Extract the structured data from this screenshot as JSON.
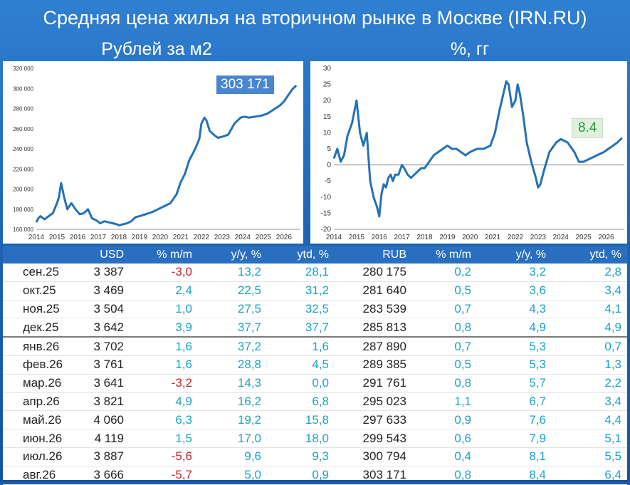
{
  "title": "Средняя цена жилья на вторичном рынке в Москве (IRN.RU)",
  "left_subtitle": "Рублей за м2",
  "right_subtitle": "%, гг",
  "left_badge": "303 171",
  "right_badge": "8.4",
  "colors": {
    "line": "#2571b5",
    "header": "#2a6fbf",
    "positive": "#1aa3c4",
    "negative": "#c0252a"
  },
  "chart_data": [
    {
      "type": "line",
      "title": "Рублей за м2",
      "x_ticks": [
        "2014",
        "2015",
        "2016",
        "2017",
        "2018",
        "2019",
        "2020",
        "2021",
        "2022",
        "2023",
        "2024",
        "2025",
        "2026"
      ],
      "y_ticks": [
        "160 000",
        "180 000",
        "200 000",
        "220 000",
        "240 000",
        "260 000",
        "280 000",
        "300 000",
        "320 000"
      ],
      "ylim": [
        160000,
        320000
      ],
      "xlim": [
        2014.0,
        2026.8
      ],
      "x": [
        2014.0,
        2014.1,
        2014.2,
        2014.4,
        2014.6,
        2014.8,
        2015.0,
        2015.1,
        2015.2,
        2015.35,
        2015.5,
        2015.7,
        2015.9,
        2016.1,
        2016.3,
        2016.5,
        2016.7,
        2016.9,
        2017.1,
        2017.3,
        2017.5,
        2017.7,
        2017.9,
        2018.0,
        2018.2,
        2018.4,
        2018.6,
        2018.8,
        2019.0,
        2019.3,
        2019.6,
        2019.9,
        2020.2,
        2020.5,
        2020.8,
        2021.0,
        2021.2,
        2021.4,
        2021.7,
        2021.9,
        2022.0,
        2022.15,
        2022.25,
        2022.4,
        2022.6,
        2022.8,
        2023.0,
        2023.3,
        2023.6,
        2023.9,
        2024.1,
        2024.3,
        2024.6,
        2024.9,
        2025.2,
        2025.5,
        2025.8,
        2026.0,
        2026.2,
        2026.4,
        2026.6
      ],
      "values": [
        167000,
        171000,
        173000,
        170000,
        173000,
        176000,
        186000,
        192000,
        206000,
        192000,
        180000,
        186000,
        180000,
        175000,
        176000,
        180000,
        171000,
        169000,
        166000,
        168000,
        167000,
        166000,
        165000,
        164000,
        165000,
        166000,
        168000,
        172000,
        173000,
        175000,
        177000,
        180000,
        183000,
        186000,
        195000,
        207000,
        215000,
        228000,
        240000,
        250000,
        265000,
        271000,
        268000,
        258000,
        254000,
        251000,
        252000,
        254000,
        265000,
        271000,
        272000,
        271000,
        272000,
        273000,
        275000,
        279000,
        283000,
        287000,
        293000,
        299000,
        303000
      ]
    },
    {
      "type": "line",
      "title": "%, гг",
      "x_ticks": [
        "2014",
        "2015",
        "2016",
        "2017",
        "2018",
        "2019",
        "2020",
        "2021",
        "2022",
        "2023",
        "2024",
        "2025",
        "2026"
      ],
      "y_ticks": [
        "-20",
        "-15",
        "-10",
        "-5",
        "0",
        "5",
        "10",
        "15",
        "20",
        "25",
        "30"
      ],
      "ylim": [
        -20,
        30
      ],
      "xlim": [
        2014.0,
        2026.8
      ],
      "x": [
        2014.0,
        2014.15,
        2014.3,
        2014.45,
        2014.6,
        2014.8,
        2015.0,
        2015.15,
        2015.3,
        2015.45,
        2015.6,
        2015.75,
        2015.9,
        2016.0,
        2016.1,
        2016.2,
        2016.3,
        2016.4,
        2016.5,
        2016.6,
        2016.7,
        2016.85,
        2017.0,
        2017.1,
        2017.25,
        2017.4,
        2017.55,
        2017.7,
        2017.85,
        2018.0,
        2018.2,
        2018.4,
        2018.6,
        2018.8,
        2019.0,
        2019.2,
        2019.4,
        2019.6,
        2019.8,
        2020.0,
        2020.3,
        2020.6,
        2020.9,
        2021.1,
        2021.3,
        2021.5,
        2021.6,
        2021.7,
        2021.85,
        2022.0,
        2022.1,
        2022.2,
        2022.35,
        2022.5,
        2022.7,
        2022.9,
        2023.0,
        2023.1,
        2023.25,
        2023.5,
        2023.8,
        2024.0,
        2024.3,
        2024.6,
        2024.8,
        2025.0,
        2025.3,
        2025.6,
        2025.9,
        2026.1,
        2026.3,
        2026.5,
        2026.7
      ],
      "values": [
        2,
        5,
        1,
        3,
        9,
        13,
        20,
        10,
        6,
        10,
        -5,
        -10,
        -13,
        -16,
        -9,
        -6,
        -7,
        -4,
        -3,
        -5,
        -3,
        -3,
        0,
        -1,
        -3,
        -4,
        -3,
        -2,
        -1,
        -1,
        1,
        3,
        4,
        5,
        6,
        5,
        5,
        4,
        3,
        4,
        5,
        5,
        6,
        10,
        17,
        23,
        26,
        25,
        18,
        20,
        25,
        22,
        15,
        7,
        1,
        -4,
        -7,
        -6,
        -2,
        4,
        7,
        8,
        7,
        4,
        1,
        1,
        2,
        3,
        4,
        5,
        6,
        7,
        8.4
      ]
    }
  ],
  "table": {
    "headers": [
      "",
      "USD",
      "% m/m",
      "y/y, %",
      "ytd, %",
      "RUB",
      "% m/m",
      "y/y, %",
      "ytd, %"
    ],
    "rows": [
      [
        "сен.25",
        "3 387",
        "-3,0",
        "13,2",
        "28,1",
        "280 175",
        "0,2",
        "3,2",
        "2,8"
      ],
      [
        "окт.25",
        "3 469",
        "2,4",
        "22,5",
        "31,2",
        "281 640",
        "0,5",
        "3,6",
        "3,4"
      ],
      [
        "ноя.25",
        "3 504",
        "1,0",
        "27,5",
        "32,5",
        "283 539",
        "0,7",
        "4,3",
        "4,1"
      ],
      [
        "дек.25",
        "3 642",
        "3,9",
        "37,7",
        "37,7",
        "285 813",
        "0,8",
        "4,9",
        "4,9"
      ],
      [
        "янв.26",
        "3 702",
        "1,6",
        "37,2",
        "1,6",
        "287 890",
        "0,7",
        "5,3",
        "0,7"
      ],
      [
        "фев.26",
        "3 761",
        "1,6",
        "28,8",
        "4,5",
        "289 385",
        "0,5",
        "5,3",
        "1,3"
      ],
      [
        "мар.26",
        "3 641",
        "-3,2",
        "14,3",
        "0,0",
        "291 761",
        "0,8",
        "5,7",
        "2,2"
      ],
      [
        "апр.26",
        "3 821",
        "4,9",
        "16,2",
        "6,8",
        "295 023",
        "1,1",
        "6,7",
        "3,4"
      ],
      [
        "май.26",
        "4 060",
        "6,3",
        "19,2",
        "15,8",
        "297 633",
        "0,9",
        "7,6",
        "4,4"
      ],
      [
        "июн.26",
        "4 119",
        "1,5",
        "17,0",
        "18,0",
        "299 543",
        "0,6",
        "7,9",
        "5,1"
      ],
      [
        "июл.26",
        "3 887",
        "-5,6",
        "9,6",
        "9,3",
        "300 794",
        "0,4",
        "8,1",
        "5,5"
      ],
      [
        "авг.26",
        "3 666",
        "-5,7",
        "5,0",
        "0,9",
        "303 171",
        "0,8",
        "8,4",
        "6,4"
      ]
    ]
  }
}
